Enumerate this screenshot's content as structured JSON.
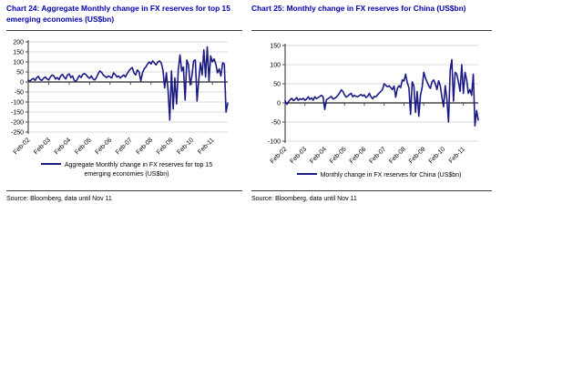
{
  "colors": {
    "title_blue": "#0000AA",
    "line_navy": "#1b1b85",
    "grid_gray": "#d9d9d9",
    "axis_dark": "#4a4a4a",
    "rule_dark": "#3f3f3f"
  },
  "charts": [
    {
      "title": "Chart 24: Aggregate Monthly change in FX reserves for top 15 emerging economies (US$bn)",
      "legend_label": "Aggregate Monthly change in FX reserves for top 15 emerging economies (US$bn)",
      "source": "Source: Bloomberg, data until Nov 11"
    },
    {
      "title": "Chart 25: Monthly change in FX reserves for China (US$bn)",
      "legend_label": "Monthly change in FX reserves for China (US$bn)",
      "source": "Source: Bloomberg, data until Nov 11"
    }
  ],
  "chart_data": [
    {
      "type": "line",
      "title": "Chart 24: Aggregate Monthly change in FX reserves for top 15 emerging economies (US$bn)",
      "series_name": "Aggregate Monthly change in FX reserves for top 15 emerging economies (US$bn)",
      "x_frequency": "monthly",
      "x_start": "Feb-02",
      "x_end": "Nov-11",
      "x_tick_labels": [
        "Feb-02",
        "Feb-03",
        "Feb-04",
        "Feb-05",
        "Feb-06",
        "Feb-07",
        "Feb-08",
        "Feb-09",
        "Feb-10",
        "Feb-11"
      ],
      "ylim": [
        -250,
        200
      ],
      "ytick_step": 50,
      "grid": true,
      "legend_position": "bottom",
      "values": [
        8,
        5,
        12,
        18,
        8,
        22,
        28,
        12,
        8,
        18,
        25,
        15,
        10,
        25,
        35,
        30,
        15,
        22,
        12,
        30,
        38,
        25,
        15,
        35,
        40,
        22,
        30,
        8,
        2,
        18,
        32,
        22,
        38,
        42,
        35,
        25,
        18,
        30,
        15,
        10,
        22,
        40,
        55,
        48,
        35,
        28,
        22,
        30,
        25,
        20,
        45,
        38,
        25,
        30,
        20,
        28,
        35,
        25,
        42,
        55,
        65,
        72,
        45,
        35,
        60,
        50,
        5,
        45,
        65,
        75,
        90,
        100,
        90,
        105,
        95,
        85,
        100,
        105,
        95,
        60,
        -30,
        45,
        -40,
        -190,
        55,
        -135,
        20,
        -110,
        60,
        135,
        55,
        75,
        -90,
        110,
        85,
        -15,
        30,
        105,
        110,
        -95,
        10,
        95,
        35,
        160,
        25,
        175,
        5,
        130,
        100,
        115,
        90,
        45,
        65,
        30,
        95,
        90,
        -150,
        -105
      ]
    },
    {
      "type": "line",
      "title": "Chart 25: Monthly change in FX reserves for China (US$bn)",
      "series_name": "Monthly change in FX reserves for China (US$bn)",
      "x_frequency": "monthly",
      "x_start": "Feb-02",
      "x_end": "Nov-11",
      "x_tick_labels": [
        "Feb-02",
        "Feb-03",
        "Feb-04",
        "Feb-05",
        "Feb-06",
        "Feb-07",
        "Feb-08",
        "Feb-09",
        "Feb-10",
        "Feb-11"
      ],
      "ylim": [
        -100,
        150
      ],
      "ytick_step": 50,
      "grid": true,
      "legend_position": "bottom",
      "values": [
        5,
        -4,
        3,
        8,
        12,
        6,
        9,
        14,
        7,
        11,
        9,
        12,
        7,
        10,
        16,
        9,
        13,
        7,
        16,
        11,
        14,
        17,
        20,
        16,
        -17,
        8,
        11,
        14,
        17,
        10,
        12,
        15,
        20,
        26,
        34,
        30,
        21,
        15,
        18,
        22,
        25,
        16,
        20,
        17,
        16,
        19,
        22,
        18,
        21,
        14,
        17,
        25,
        16,
        11,
        17,
        16,
        21,
        26,
        30,
        35,
        50,
        46,
        42,
        45,
        40,
        35,
        44,
        15,
        38,
        45,
        40,
        60,
        57,
        75,
        53,
        40,
        -30,
        55,
        45,
        -25,
        30,
        -35,
        20,
        40,
        80,
        65,
        55,
        45,
        38,
        55,
        60,
        50,
        35,
        58,
        45,
        15,
        -10,
        45,
        10,
        -50,
        85,
        113,
        5,
        80,
        75,
        55,
        30,
        100,
        25,
        80,
        60,
        25,
        35,
        20,
        75,
        -60,
        -20,
        -45
      ]
    }
  ]
}
